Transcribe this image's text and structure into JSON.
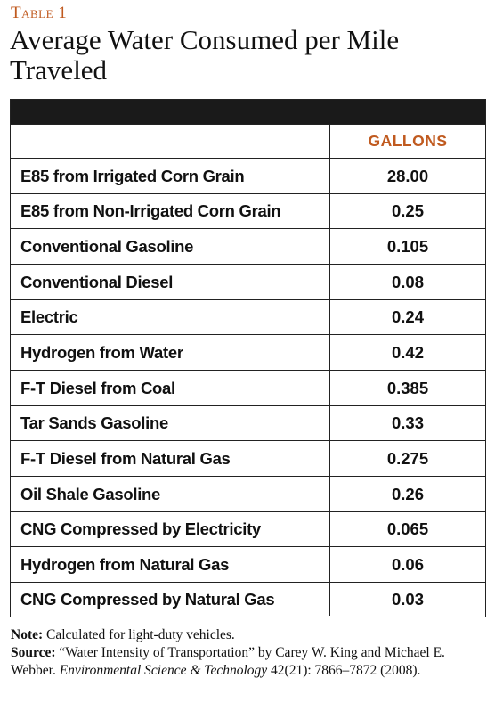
{
  "label": "Table 1",
  "title": "Average Water Consumed per Mile Traveled",
  "table": {
    "column_header": "GALLONS",
    "rows": [
      {
        "name": "E85 from Irrigated Corn Grain",
        "value": "28.00"
      },
      {
        "name": "E85 from Non-Irrigated Corn Grain",
        "value": "0.25"
      },
      {
        "name": "Conventional Gasoline",
        "value": "0.105"
      },
      {
        "name": "Conventional Diesel",
        "value": "0.08"
      },
      {
        "name": "Electric",
        "value": "0.24"
      },
      {
        "name": "Hydrogen from Water",
        "value": "0.42"
      },
      {
        "name": "F-T Diesel from Coal",
        "value": "0.385"
      },
      {
        "name": "Tar Sands Gasoline",
        "value": "0.33"
      },
      {
        "name": "F-T Diesel from Natural Gas",
        "value": "0.275"
      },
      {
        "name": "Oil Shale Gasoline",
        "value": "0.26"
      },
      {
        "name": "CNG Compressed by Electricity",
        "value": "0.065"
      },
      {
        "name": "Hydrogen from Natural Gas",
        "value": "0.06"
      },
      {
        "name": "CNG Compressed by Natural Gas",
        "value": "0.03"
      }
    ]
  },
  "notes": {
    "note_label": "Note:",
    "note_text": "Calculated for light-duty vehicles.",
    "source_label": "Source:",
    "source_text": "“Water Intensity of Transportation” by Carey W. King and Michael E. Webber.",
    "source_journal": "Environmental Science & Technology",
    "source_citation": "42(21): 7866–7872 (2008)."
  },
  "colors": {
    "accent": "#c05a1f",
    "header_bar": "#1a1a1a"
  }
}
